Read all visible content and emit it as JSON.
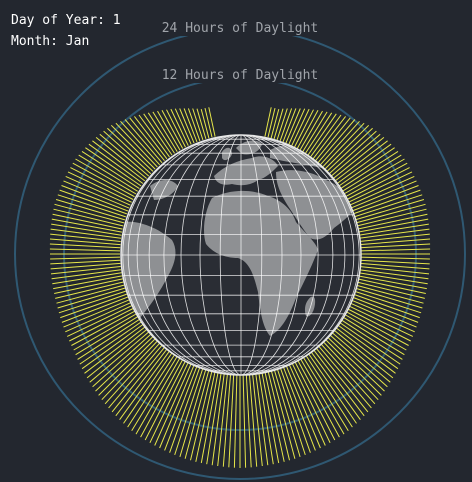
{
  "info": {
    "day_label": "Day of Year: ",
    "day_value": "1",
    "month_label": "Month: ",
    "month_value": "Jan"
  },
  "rings": {
    "outer_label": "24 Hours of Daylight",
    "inner_label": "12 Hours of Daylight"
  },
  "colors": {
    "background": "#23272f",
    "ring": "#2f5872",
    "daylight": "#e6e64a",
    "globe_land": "#8e9093",
    "globe_ocean": "#2a2d34",
    "graticule": "#ffffff"
  },
  "icons": {
    "globe": "earth-globe-icon"
  }
}
